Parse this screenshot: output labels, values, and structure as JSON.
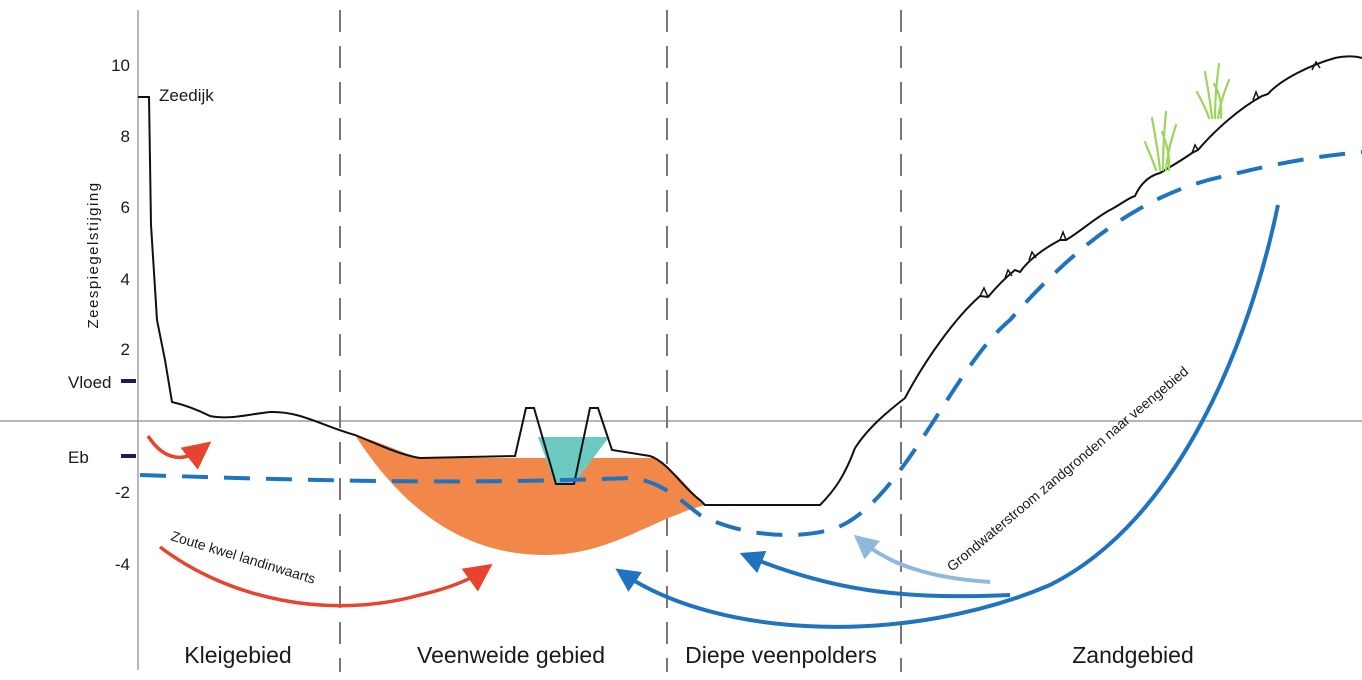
{
  "diagram": {
    "y_axis": {
      "label": "Zeespiegelstijging",
      "ticks": [
        "10",
        "8",
        "6",
        "4",
        "2",
        "-2",
        "-4"
      ]
    },
    "markers": {
      "high_tide": "Vloed",
      "low_tide": "Eb"
    },
    "annotations": {
      "dike": "Zeedijk",
      "saline_seepage": "Zoute kwel landinwaarts",
      "groundwater_flow": "Grondwaterstroom zandgronden naar veengebied"
    },
    "zones": [
      "Kleigebied",
      "Veenweide gebied",
      "Diepe veenpolders",
      "Zandgebied"
    ],
    "colors": {
      "terrain_line": "#111111",
      "groundwater_dashed": "#1f73bf",
      "salt_arrow": "#e8432c",
      "peat_fill": "#f2874a",
      "ditch_water": "#6ccac2",
      "flow_arrow": "#1f73bf",
      "flow_arrow_light": "#8fb8dc",
      "tide_marker": "#1b1a5c",
      "divider": "#777777",
      "grass": "#9bd65a"
    }
  }
}
